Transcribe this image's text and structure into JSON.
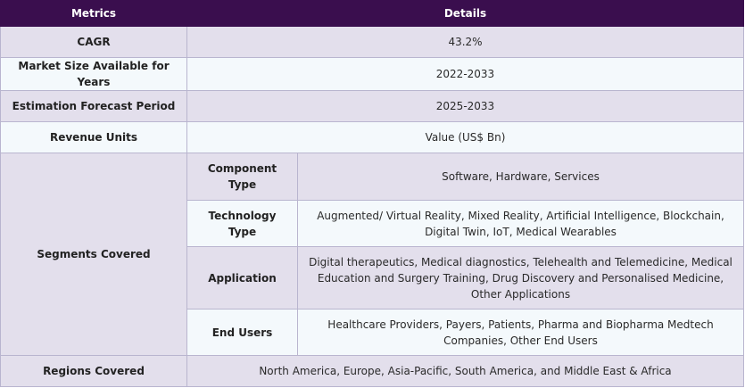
{
  "header": {
    "metrics": "Metrics",
    "details": "Details"
  },
  "rows": {
    "cagr": {
      "label": "CAGR",
      "value": "43.2%"
    },
    "market_size": {
      "label": "Market Size Available for Years",
      "value": "2022-2033"
    },
    "forecast": {
      "label": "Estimation Forecast Period",
      "value": "2025-2033"
    },
    "revenue": {
      "label": "Revenue Units",
      "value": "Value (US$ Bn)"
    },
    "segments": {
      "label": "Segments Covered",
      "items": [
        {
          "label": "Component Type",
          "value": "Software, Hardware, Services"
        },
        {
          "label": "Technology Type",
          "value": "Augmented/ Virtual Reality, Mixed Reality, Artificial Intelligence, Blockchain, Digital Twin, IoT, Medical Wearables"
        },
        {
          "label": "Application",
          "value": "Digital therapeutics, Medical diagnostics, Telehealth and Telemedicine, Medical Education and Surgery Training, Drug Discovery and Personalised Medicine, Other Applications"
        },
        {
          "label": "End Users",
          "value": "Healthcare Providers, Payers, Patients, Pharma and Biopharma Medtech Companies, Other End Users"
        }
      ]
    },
    "regions": {
      "label": "Regions Covered",
      "value": "North America, Europe, Asia-Pacific, South America, and Middle East & Africa"
    }
  }
}
